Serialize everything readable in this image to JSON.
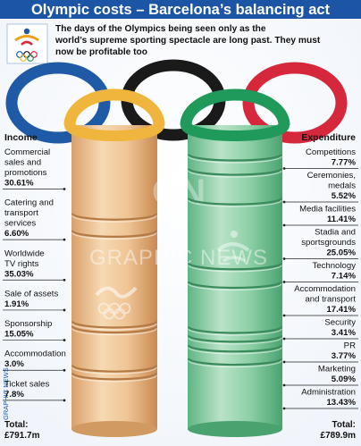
{
  "title": "Olympic costs – Barcelona’s balancing act",
  "intro": "The days of the Olympics being seen only as the world’s supreme sporting spectacle are long past. They must now be profitable too",
  "credit": "GRAPHIC NEWS",
  "watermark": "GRAPHIC NEWS",
  "colors": {
    "title_bg": "#1d55a6",
    "ring_blue": "#1f5aa6",
    "ring_black": "#1a1a1a",
    "ring_red": "#d6283c",
    "ring_yellow": "#f0b53c",
    "ring_green": "#1f9a5b",
    "income_column": "#efc596",
    "expenditure_column": "#8ed0a8"
  },
  "chart_data": [
    {
      "type": "table",
      "title": "Income",
      "unit": "%",
      "categories": [
        "Commercial sales and promotions",
        "Catering and transport services",
        "Worldwide TV rights",
        "Sale of assets",
        "Sponsorship",
        "Accommodation",
        "Ticket sales"
      ],
      "label_lines": [
        [
          "Commercial",
          "sales and",
          "promotions"
        ],
        [
          "Catering and",
          "transport",
          "services"
        ],
        [
          "Worldwide",
          "TV rights"
        ],
        [
          "Sale of assets"
        ],
        [
          "Sponsorship"
        ],
        [
          "Accommodation"
        ],
        [
          "Ticket sales"
        ]
      ],
      "value_labels": [
        "30.61%",
        "6.60%",
        "35.03%",
        "1.91%",
        "15.05%",
        "3.0%",
        "7.8%"
      ],
      "values": [
        30.61,
        6.6,
        35.03,
        1.91,
        15.05,
        3.0,
        7.8
      ],
      "total_label": "Total:",
      "total_value": "£791.7m"
    },
    {
      "type": "table",
      "title": "Expenditure",
      "unit": "%",
      "categories": [
        "Competitions",
        "Ceremonies, medals",
        "Media facilities",
        "Stadia and sportsgrounds",
        "Technology",
        "Accommodation and transport",
        "Security",
        "PR",
        "Marketing",
        "Administration"
      ],
      "label_lines": [
        [
          "Competitions"
        ],
        [
          "Ceremonies,",
          "medals"
        ],
        [
          "Media facilities"
        ],
        [
          "Stadia and",
          "sportsgrounds"
        ],
        [
          "Technology"
        ],
        [
          "Accommodation",
          "and transport"
        ],
        [
          "Security"
        ],
        [
          "PR"
        ],
        [
          "Marketing"
        ],
        [
          "Administration"
        ]
      ],
      "value_labels": [
        "7.77%",
        "5.52%",
        "11.41%",
        "25.05%",
        "7.14%",
        "17.41%",
        "3.41%",
        "3.77%",
        "5.09%",
        "13.43%"
      ],
      "values": [
        7.77,
        5.52,
        11.41,
        25.05,
        7.14,
        17.41,
        3.41,
        3.77,
        5.09,
        13.43
      ],
      "total_label": "Total:",
      "total_value": "£789.9m"
    }
  ]
}
